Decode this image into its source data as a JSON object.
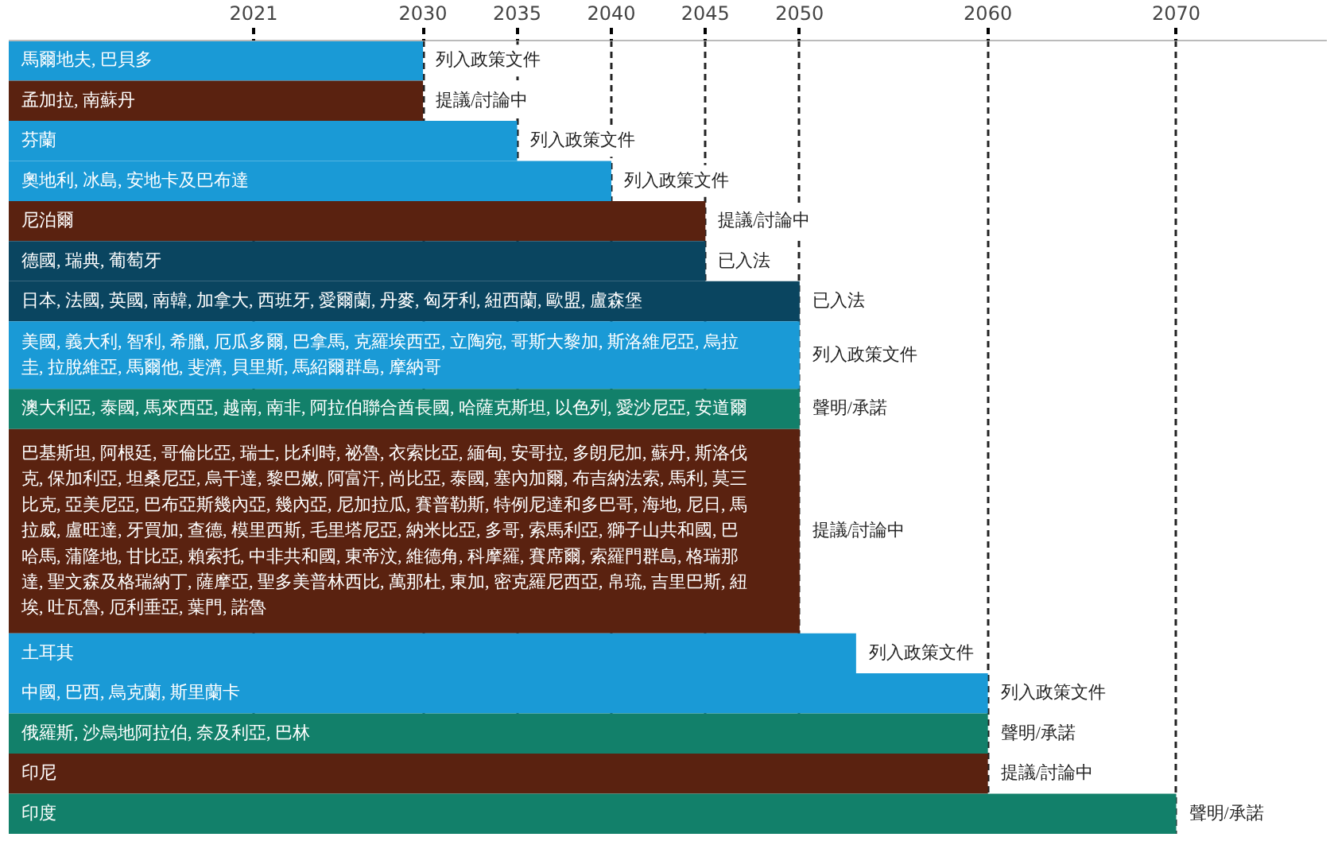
{
  "chart_data": {
    "type": "bar",
    "orientation": "horizontal",
    "categories": [
      "馬爾地夫, 巴貝多",
      "孟加拉, 南蘇丹",
      "芬蘭",
      "奧地利, 冰島, 安地卡及巴布達",
      "尼泊爾",
      "德國, 瑞典, 葡萄牙",
      "日本, 法國, 英國, 南韓, 加拿大, 西班牙, 愛爾蘭, 丹麥, 匈牙利, 紐西蘭, 歐盟, 盧森堡",
      "美國, 義大利, 智利, 希臘, 厄瓜多爾, 巴拿馬, 克羅埃西亞, 立陶宛, 哥斯大黎加, 斯洛維尼亞, 烏拉圭, 拉脫維亞, 馬爾他, 斐濟, 貝里斯, 馬紹爾群島, 摩納哥",
      "澳大利亞, 泰國, 馬來西亞, 越南, 南非, 阿拉伯聯合酋長國, 哈薩克斯坦, 以色列, 愛沙尼亞, 安道爾",
      "巴基斯坦, 阿根廷, 哥倫比亞, 瑞士, 比利時, 祕魯, 衣索比亞, 緬甸, 安哥拉, 多朗尼加, 蘇丹, 斯洛伐克, 保加利亞, 坦桑尼亞, 烏干達, 黎巴嫩, 阿富汗, 尚比亞, 泰國, 塞內加爾, 布吉納法索, 馬利, 莫三比克, 亞美尼亞, 巴布亞斯幾內亞, 幾內亞, 尼加拉瓜, 賽普勒斯, 特例尼達和多巴哥, 海地, 尼日, 馬拉威, 盧旺達, 牙買加, 查德, 模里西斯, 毛里塔尼亞, 納米比亞, 多哥, 索馬利亞, 獅子山共和國, 巴哈馬, 蒲隆地, 甘比亞, 賴索托, 中非共和國, 東帝汶, 維德角, 科摩羅, 賽席爾, 索羅門群島, 格瑞那達, 聖文森及格瑞納丁, 薩摩亞, 聖多美普林西比, 萬那杜, 東加, 密克羅尼西亞, 帛琉, 吉里巴斯, 紐埃, 吐瓦魯, 厄利垂亞, 葉門, 諾魯",
      "土耳其",
      "中國, 巴西, 烏克蘭, 斯里蘭卡",
      "俄羅斯, 沙烏地阿拉伯, 奈及利亞, 巴林",
      "印尼",
      "印度"
    ],
    "values": [
      2030,
      2030,
      2035,
      2040,
      2045,
      2045,
      2050,
      2050,
      2050,
      2050,
      2053,
      2060,
      2060,
      2060,
      2070
    ],
    "colors": [
      "#1a9ad6",
      "#5a2210",
      "#1a9ad6",
      "#1a9ad6",
      "#5a2210",
      "#0a4560",
      "#0a4560",
      "#1a9ad6",
      "#12806a",
      "#5a2210",
      "#1a9ad6",
      "#1a9ad6",
      "#12806a",
      "#5a2210",
      "#12806a"
    ],
    "value_labels": [
      "列入政策文件",
      "提議/討論中",
      "列入政策文件",
      "列入政策文件",
      "提議/討論中",
      "已入法",
      "已入法",
      "列入政策文件",
      "聲明/承諾",
      "提議/討論中",
      "列入政策文件",
      "列入政策文件",
      "聲明/承諾",
      "提議/討論中",
      "聲明/承諾"
    ],
    "xlim": [
      2008,
      2078
    ],
    "xticks": [
      2021,
      2030,
      2035,
      2040,
      2045,
      2050,
      2060,
      2070
    ],
    "grid": "x",
    "tick_labels": "x"
  }
}
